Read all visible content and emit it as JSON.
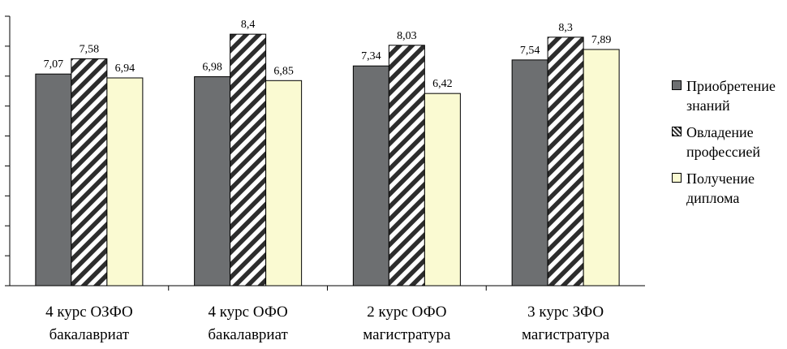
{
  "chart_data": {
    "type": "bar",
    "categories": [
      [
        "4 курс ОЗФО",
        "бакалавриат"
      ],
      [
        "4 курс ОФО",
        "бакалавриат"
      ],
      [
        "2 курс ОФО",
        "магистратура"
      ],
      [
        "3 курс ЗФО",
        "магистратура"
      ]
    ],
    "series": [
      {
        "name": "Приобретение знаний",
        "legend_lines": [
          "Приобретение",
          "знаний"
        ],
        "values": [
          7.07,
          6.98,
          7.34,
          7.54
        ],
        "value_labels": [
          "7,07",
          "6,98",
          "7,34",
          "7,54"
        ],
        "color": "#6d6f71",
        "pattern": "solid"
      },
      {
        "name": "Овладение профессией",
        "legend_lines": [
          "Овладение",
          "профессией"
        ],
        "values": [
          7.58,
          8.4,
          8.03,
          8.3
        ],
        "value_labels": [
          "7,58",
          "8,4",
          "8,03",
          "8,3"
        ],
        "color": "#ffffff",
        "pattern": "diagonal-hatch"
      },
      {
        "name": "Получение диплома",
        "legend_lines": [
          "Получение",
          "диплома"
        ],
        "values": [
          6.94,
          6.85,
          6.42,
          7.89
        ],
        "value_labels": [
          "6,94",
          "6,85",
          "6,42",
          "7,89"
        ],
        "color": "#fafad2",
        "pattern": "solid"
      }
    ],
    "ylim": [
      0,
      9
    ],
    "y_tick_count": 10,
    "grid": false,
    "legend": "right",
    "title": "",
    "xlabel": "",
    "ylabel": ""
  }
}
